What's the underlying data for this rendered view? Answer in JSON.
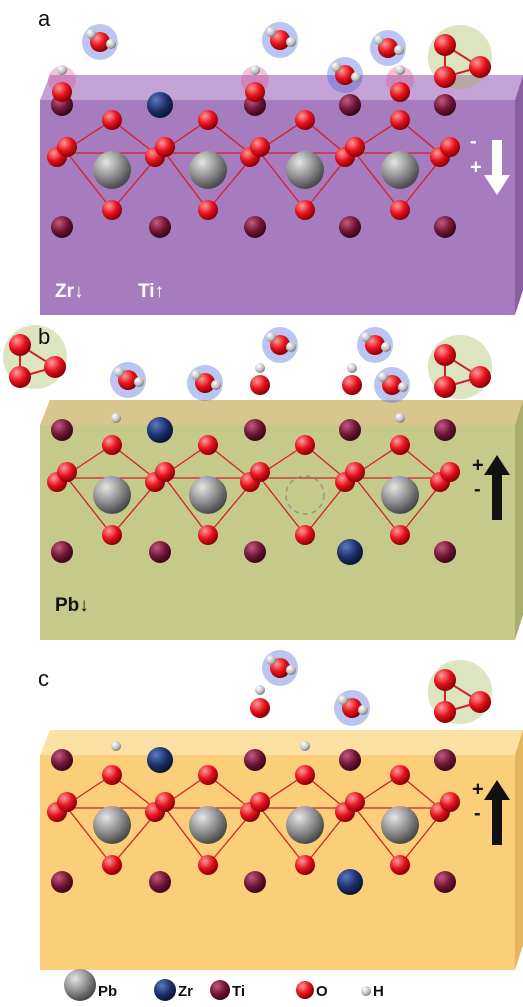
{
  "panels": [
    {
      "label": "a",
      "annotations": [
        "Zr↓",
        "Ti↑"
      ],
      "polarity": [
        "-",
        "+"
      ]
    },
    {
      "label": "b",
      "annotations": [
        "Pb↓"
      ],
      "polarity": [
        "+",
        "-"
      ]
    },
    {
      "label": "c",
      "polarity": [
        "+",
        "-"
      ]
    }
  ],
  "legend": [
    {
      "label": "Pb"
    },
    {
      "label": "Zr"
    },
    {
      "label": "Ti"
    },
    {
      "label": "O"
    },
    {
      "label": "H"
    }
  ]
}
